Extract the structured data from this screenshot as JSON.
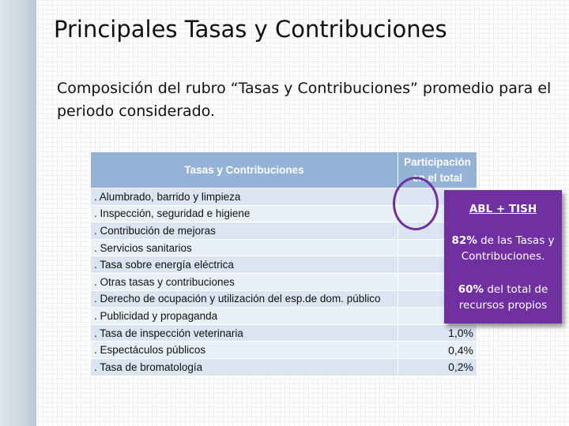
{
  "header": {
    "title": "Principales Tasas y Contribuciones",
    "subtitle": "Composición del rubro “Tasas y Contribuciones” promedio para el periodo considerado."
  },
  "table": {
    "columns": [
      "Tasas y Contribuciones",
      "Participación en el total"
    ],
    "rows": [
      {
        "label": ". Alumbrado, barrido y limpieza"
      },
      {
        "label": ". Inspección, seguridad e higiene"
      },
      {
        "label": ". Contribución de mejoras"
      },
      {
        "label": ". Servicios sanitarios"
      },
      {
        "label": ". Tasa sobre energía eléctrica"
      },
      {
        "label": ". Otras tasas y contribuciones"
      },
      {
        "label": ". Derecho de ocupación y utilización del esp.de dom. público"
      },
      {
        "label": ". Publicidad y propaganda"
      },
      {
        "label": ". Tasa de inspección veterinaria",
        "share": "1,0%"
      },
      {
        "label": ". Espectáculos públicos",
        "share": "0,4%"
      },
      {
        "label": ". Tasa de bromatología",
        "share": "0,2%"
      }
    ]
  },
  "callout": {
    "title": "ABL + TISH",
    "lines": [
      {
        "bold": "82%",
        "text": "de las Tasas y Contribuciones."
      },
      {
        "bold": "60%",
        "text": "del total de recursos propios"
      }
    ]
  }
}
